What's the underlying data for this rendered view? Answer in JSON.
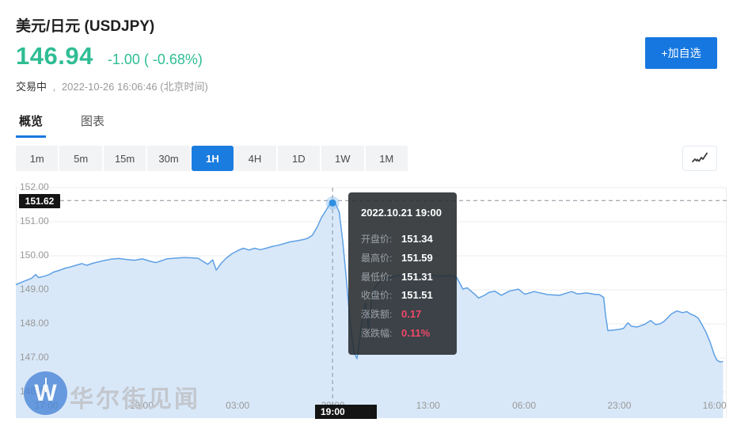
{
  "header": {
    "title": "美元/日元  (USDJPY)",
    "price": "146.94",
    "change": "-1.00 ( -0.68%)",
    "status": "交易中",
    "separator": ",",
    "datetime": "2022-10-26 16:06:46  (北京时间)",
    "add_watchlist": "+加自选"
  },
  "tabs": [
    {
      "label": "概览",
      "active": true
    },
    {
      "label": "图表",
      "active": false
    }
  ],
  "periods": [
    {
      "label": "1m",
      "active": false
    },
    {
      "label": "5m",
      "active": false
    },
    {
      "label": "15m",
      "active": false
    },
    {
      "label": "30m",
      "active": false
    },
    {
      "label": "1H",
      "active": true
    },
    {
      "label": "4H",
      "active": false
    },
    {
      "label": "1D",
      "active": false
    },
    {
      "label": "1W",
      "active": false
    },
    {
      "label": "1M",
      "active": false
    }
  ],
  "watermark": {
    "logo_letter": "W",
    "text": "华尔街见闻"
  },
  "colors": {
    "price_green": "#2fbd94",
    "accent_blue": "#1677e0",
    "line_blue": "#5ea0e5",
    "area_fill": "#d9e8f8",
    "grid": "#ececec",
    "crosshair": "#8a8f98",
    "badge_black": "#141414",
    "tooltip_red": "#f0486a",
    "axis_text": "#999999"
  },
  "chart_data": {
    "type": "area",
    "title": "USDJPY 1H",
    "xlabel": "",
    "ylabel": "",
    "ylim": [
      145.23,
      152.0
    ],
    "grid": true,
    "y_ticks": [
      {
        "v": 152,
        "label": "152.00"
      },
      {
        "v": 151,
        "label": "151.00"
      },
      {
        "v": 150,
        "label": "150.00"
      },
      {
        "v": 149,
        "label": "149.00"
      },
      {
        "v": 148,
        "label": "148.00"
      },
      {
        "v": 147,
        "label": "147.00"
      },
      {
        "v": 146,
        "label": "146.00"
      }
    ],
    "x_ticks": [
      {
        "f": 0.043,
        "label": "17:00"
      },
      {
        "f": 0.177,
        "label": "10:00"
      },
      {
        "f": 0.312,
        "label": "03:00"
      },
      {
        "f": 0.446,
        "label": "20:00"
      },
      {
        "f": 0.58,
        "label": "13:00"
      },
      {
        "f": 0.715,
        "label": "06:00"
      },
      {
        "f": 0.849,
        "label": "23:00"
      },
      {
        "f": 0.983,
        "label": "16:00"
      }
    ],
    "series": [
      {
        "name": "USDJPY",
        "points": [
          [
            0.0,
            149.15
          ],
          [
            0.011,
            149.25
          ],
          [
            0.022,
            149.34
          ],
          [
            0.028,
            149.45
          ],
          [
            0.032,
            149.36
          ],
          [
            0.04,
            149.4
          ],
          [
            0.047,
            149.45
          ],
          [
            0.053,
            149.52
          ],
          [
            0.062,
            149.58
          ],
          [
            0.07,
            149.64
          ],
          [
            0.078,
            149.68
          ],
          [
            0.086,
            149.73
          ],
          [
            0.093,
            149.77
          ],
          [
            0.1,
            149.72
          ],
          [
            0.108,
            149.78
          ],
          [
            0.116,
            149.82
          ],
          [
            0.124,
            149.86
          ],
          [
            0.134,
            149.9
          ],
          [
            0.145,
            149.92
          ],
          [
            0.156,
            149.89
          ],
          [
            0.167,
            149.87
          ],
          [
            0.178,
            149.91
          ],
          [
            0.189,
            149.84
          ],
          [
            0.197,
            149.8
          ],
          [
            0.204,
            149.85
          ],
          [
            0.212,
            149.91
          ],
          [
            0.224,
            149.93
          ],
          [
            0.237,
            149.95
          ],
          [
            0.248,
            149.94
          ],
          [
            0.256,
            149.93
          ],
          [
            0.263,
            149.84
          ],
          [
            0.27,
            149.75
          ],
          [
            0.277,
            149.88
          ],
          [
            0.282,
            149.58
          ],
          [
            0.289,
            149.78
          ],
          [
            0.296,
            149.93
          ],
          [
            0.304,
            150.06
          ],
          [
            0.312,
            150.15
          ],
          [
            0.32,
            150.22
          ],
          [
            0.328,
            150.17
          ],
          [
            0.336,
            150.22
          ],
          [
            0.344,
            150.18
          ],
          [
            0.352,
            150.22
          ],
          [
            0.36,
            150.27
          ],
          [
            0.369,
            150.31
          ],
          [
            0.378,
            150.36
          ],
          [
            0.386,
            150.41
          ],
          [
            0.395,
            150.44
          ],
          [
            0.403,
            150.47
          ],
          [
            0.41,
            150.51
          ],
          [
            0.417,
            150.6
          ],
          [
            0.424,
            150.85
          ],
          [
            0.43,
            151.12
          ],
          [
            0.436,
            151.32
          ],
          [
            0.441,
            151.5
          ],
          [
            0.4455,
            151.58
          ],
          [
            0.45,
            151.52
          ],
          [
            0.455,
            151.28
          ],
          [
            0.46,
            150.4
          ],
          [
            0.465,
            149.3
          ],
          [
            0.47,
            148.1
          ],
          [
            0.476,
            147.15
          ],
          [
            0.48,
            146.98
          ],
          [
            0.484,
            147.6
          ],
          [
            0.489,
            148.4
          ],
          [
            0.492,
            148.63
          ],
          [
            0.496,
            147.88
          ],
          [
            0.5,
            148.62
          ],
          [
            0.505,
            149.07
          ],
          [
            0.511,
            149.22
          ],
          [
            0.518,
            149.33
          ],
          [
            0.528,
            149.38
          ],
          [
            0.538,
            149.42
          ],
          [
            0.548,
            149.45
          ],
          [
            0.558,
            149.41
          ],
          [
            0.568,
            149.44
          ],
          [
            0.578,
            149.45
          ],
          [
            0.586,
            149.43
          ],
          [
            0.6,
            149.4
          ],
          [
            0.614,
            149.42
          ],
          [
            0.62,
            149.37
          ],
          [
            0.629,
            149.02
          ],
          [
            0.635,
            149.06
          ],
          [
            0.645,
            148.88
          ],
          [
            0.651,
            148.76
          ],
          [
            0.66,
            148.85
          ],
          [
            0.666,
            148.93
          ],
          [
            0.674,
            148.96
          ],
          [
            0.683,
            148.84
          ],
          [
            0.694,
            148.96
          ],
          [
            0.707,
            149.02
          ],
          [
            0.716,
            148.87
          ],
          [
            0.729,
            148.95
          ],
          [
            0.74,
            148.9
          ],
          [
            0.748,
            148.86
          ],
          [
            0.757,
            148.85
          ],
          [
            0.765,
            148.84
          ],
          [
            0.774,
            148.9
          ],
          [
            0.782,
            148.95
          ],
          [
            0.79,
            148.88
          ],
          [
            0.803,
            148.91
          ],
          [
            0.814,
            148.87
          ],
          [
            0.821,
            148.86
          ],
          [
            0.827,
            148.78
          ],
          [
            0.83,
            148.2
          ],
          [
            0.833,
            147.8
          ],
          [
            0.841,
            147.82
          ],
          [
            0.849,
            147.84
          ],
          [
            0.855,
            147.87
          ],
          [
            0.861,
            148.03
          ],
          [
            0.866,
            147.93
          ],
          [
            0.874,
            147.91
          ],
          [
            0.885,
            147.99
          ],
          [
            0.893,
            148.1
          ],
          [
            0.9,
            147.98
          ],
          [
            0.906,
            148.0
          ],
          [
            0.911,
            148.06
          ],
          [
            0.918,
            148.2
          ],
          [
            0.922,
            148.29
          ],
          [
            0.93,
            148.38
          ],
          [
            0.938,
            148.33
          ],
          [
            0.944,
            148.36
          ],
          [
            0.949,
            148.29
          ],
          [
            0.955,
            148.24
          ],
          [
            0.96,
            148.17
          ],
          [
            0.966,
            147.95
          ],
          [
            0.971,
            147.75
          ],
          [
            0.977,
            147.45
          ],
          [
            0.982,
            147.13
          ],
          [
            0.986,
            146.94
          ],
          [
            0.991,
            146.88
          ],
          [
            0.995,
            146.9
          ]
        ]
      }
    ],
    "crosshair": {
      "x_f": 0.4455,
      "value": 151.62,
      "value_label": "151.62",
      "time_label": "19:00",
      "marker_value": 151.55
    },
    "tooltip": {
      "title": "2022.10.21 19:00",
      "rows": [
        {
          "label": "开盘价:",
          "value": "151.34",
          "red": false
        },
        {
          "label": "最高价:",
          "value": "151.59",
          "red": false
        },
        {
          "label": "最低价:",
          "value": "151.31",
          "red": false
        },
        {
          "label": "收盘价:",
          "value": "151.51",
          "red": false
        },
        {
          "label": "涨跌额:",
          "value": "0.17",
          "red": true
        },
        {
          "label": "涨跌幅:",
          "value": "0.11%",
          "red": true
        }
      ]
    }
  }
}
